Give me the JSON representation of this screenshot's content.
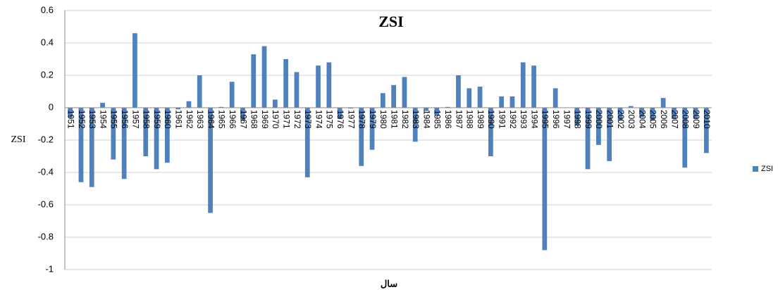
{
  "chart_data": {
    "type": "bar",
    "title": "ZSI",
    "y_label": "ZSI",
    "x_label": "سال",
    "categories": [
      "1951",
      "1952",
      "1953",
      "1954",
      "1955",
      "1956",
      "1957",
      "1958",
      "1959",
      "1960",
      "1961",
      "1962",
      "1963",
      "1964",
      "1965",
      "1966",
      "1967",
      "1968",
      "1969",
      "1970",
      "1971",
      "1972",
      "1973",
      "1974",
      "1975",
      "1976",
      "1977",
      "1978",
      "1979",
      "1980",
      "1981",
      "1982",
      "1983",
      "1984",
      "1985",
      "1986",
      "1987",
      "1988",
      "1989",
      "1990",
      "1991",
      "1992",
      "1993",
      "1994",
      "1995",
      "1996",
      "1997",
      "1998",
      "1999",
      "2000",
      "2001",
      "2002",
      "2003",
      "2004",
      "2005",
      "2006",
      "2007",
      "2008",
      "2009",
      "2010"
    ],
    "series": [
      {
        "name": "ZSI",
        "color": "#4f81bd",
        "values": [
          -0.06,
          -0.46,
          -0.49,
          0.03,
          -0.32,
          -0.44,
          0.46,
          -0.3,
          -0.38,
          -0.34,
          -0.01,
          0.04,
          0.2,
          -0.65,
          0.005,
          0.16,
          -0.08,
          0.33,
          0.38,
          0.05,
          0.3,
          0.22,
          -0.43,
          0.26,
          0.28,
          -0.07,
          -0.005,
          -0.36,
          -0.26,
          0.09,
          0.14,
          0.19,
          -0.21,
          -0.02,
          -0.05,
          0.005,
          0.2,
          0.12,
          0.13,
          -0.3,
          0.07,
          0.07,
          0.28,
          0.26,
          -0.88,
          0.12,
          0,
          -0.11,
          -0.38,
          -0.23,
          -0.33,
          -0.08,
          0.01,
          -0.06,
          -0.08,
          0.06,
          -0.07,
          -0.37,
          -0.07,
          -0.28
        ]
      }
    ],
    "ylim": [
      -1,
      0.6
    ],
    "yticks": [
      -1,
      -0.8,
      -0.6,
      -0.4,
      -0.2,
      0,
      0.2,
      0.4,
      0.6
    ],
    "grid": true,
    "legend": "right"
  }
}
